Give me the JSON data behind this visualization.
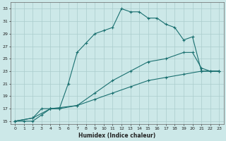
{
  "xlabel": "Humidex (Indice chaleur)",
  "bg_color": "#cce8e8",
  "grid_color": "#aacccc",
  "line_color": "#1a7070",
  "xlim": [
    -0.5,
    23.5
  ],
  "ylim": [
    14.5,
    34
  ],
  "xticks": [
    0,
    1,
    2,
    3,
    4,
    5,
    6,
    7,
    8,
    9,
    10,
    11,
    12,
    13,
    14,
    15,
    16,
    17,
    18,
    19,
    20,
    21,
    22,
    23
  ],
  "yticks": [
    15,
    17,
    19,
    21,
    23,
    25,
    27,
    29,
    31,
    33
  ],
  "line1_x": [
    0,
    1,
    2,
    3,
    4,
    5,
    6,
    7,
    8,
    9,
    10,
    11,
    12,
    13,
    14,
    15,
    16,
    17,
    18,
    19,
    20,
    21,
    22,
    23
  ],
  "line1_y": [
    15,
    15,
    15,
    16,
    17,
    17,
    21,
    26,
    27.5,
    29,
    29.5,
    30,
    33,
    32.5,
    32.5,
    31.5,
    31.5,
    30.5,
    30,
    28,
    28.5,
    23,
    23,
    23
  ],
  "line2_x": [
    0,
    2,
    3,
    4,
    5,
    7,
    9,
    11,
    13,
    15,
    17,
    19,
    20,
    21,
    22,
    23
  ],
  "line2_y": [
    15,
    15.5,
    17,
    17,
    17,
    17.5,
    19.5,
    21.5,
    23,
    24.5,
    25,
    26,
    26,
    23.5,
    23,
    23
  ],
  "line3_x": [
    0,
    2,
    4,
    7,
    9,
    11,
    13,
    15,
    17,
    19,
    21,
    23
  ],
  "line3_y": [
    15,
    15.5,
    17,
    17.5,
    18.5,
    19.5,
    20.5,
    21.5,
    22,
    22.5,
    23,
    23
  ]
}
